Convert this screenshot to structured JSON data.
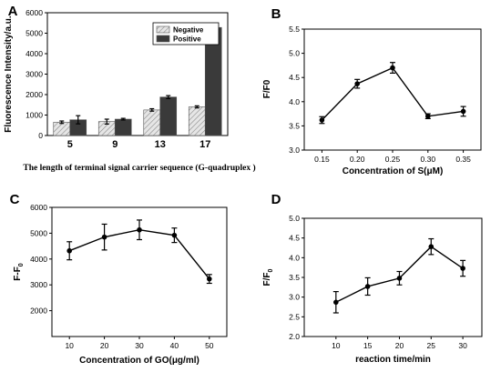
{
  "chart_data": [
    {
      "panel": "A",
      "type": "bar",
      "categories": [
        "5",
        "9",
        "13",
        "17"
      ],
      "series": [
        {
          "name": "Negative",
          "values": [
            650,
            680,
            1250,
            1400
          ],
          "errors": [
            60,
            120,
            60,
            50
          ],
          "color": "#d9d9d9",
          "pattern": "hatched"
        },
        {
          "name": "Positive",
          "values": [
            770,
            800,
            1880,
            5280
          ],
          "errors": [
            200,
            40,
            70,
            50
          ],
          "color": "#3a3a3a"
        }
      ],
      "title": "",
      "xlabel": "The length of terminal signal carrier sequence (G-quadruplex )",
      "ylabel": "Fluorescence Intensity/a.u.",
      "ylim": [
        0,
        6000
      ],
      "yticks": [
        "0",
        "1000",
        "2000",
        "3000",
        "4000",
        "5000",
        "6000"
      ],
      "legend": "top-right",
      "grid": false
    },
    {
      "panel": "B",
      "type": "line",
      "x": [
        "0.15",
        "0.20",
        "0.25",
        "0.30",
        "0.35"
      ],
      "xvals": [
        0.15,
        0.2,
        0.25,
        0.3,
        0.35
      ],
      "y": [
        3.62,
        4.37,
        4.7,
        3.7,
        3.8
      ],
      "yerr": [
        0.07,
        0.09,
        0.11,
        0.05,
        0.1
      ],
      "title": "",
      "xlabel": "Concentration of S(μM)",
      "ylabel": "F/F0",
      "xlim": [
        0.125,
        0.375
      ],
      "ylim": [
        3.0,
        5.5
      ],
      "yticks": [
        "3.0",
        "3.5",
        "4.0",
        "4.5",
        "5.0",
        "5.5"
      ],
      "grid": false
    },
    {
      "panel": "C",
      "type": "line",
      "x": [
        "10",
        "20",
        "30",
        "40",
        "50"
      ],
      "xvals": [
        10,
        20,
        30,
        40,
        50
      ],
      "y": [
        4320,
        4850,
        5130,
        4920,
        3230
      ],
      "yerr": [
        350,
        500,
        380,
        280,
        170
      ],
      "title": "",
      "xlabel": "Concentration of GO(μg/ml)",
      "ylabel": "F-F",
      "ylabel_sub": "0",
      "xlim": [
        5,
        55
      ],
      "ylim": [
        1000,
        6000
      ],
      "yticks": [
        "2000",
        "3000",
        "4000",
        "5000",
        "6000"
      ],
      "grid": false
    },
    {
      "panel": "D",
      "type": "line",
      "x": [
        "10",
        "15",
        "20",
        "25",
        "30"
      ],
      "xvals": [
        10,
        15,
        20,
        25,
        30
      ],
      "y": [
        2.87,
        3.27,
        3.48,
        4.28,
        3.73
      ],
      "yerr": [
        0.27,
        0.22,
        0.17,
        0.2,
        0.2
      ],
      "title": "",
      "xlabel": "reaction time/min",
      "ylabel": "F/F",
      "ylabel_sub": "0",
      "xlim": [
        5,
        33
      ],
      "ylim": [
        2.0,
        5.0
      ],
      "yticks": [
        "2.0",
        "2.5",
        "3.0",
        "3.5",
        "4.0",
        "4.5",
        "5.0"
      ],
      "grid": false
    }
  ]
}
